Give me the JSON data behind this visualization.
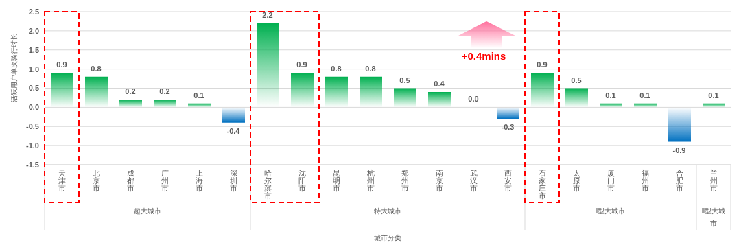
{
  "chart_data": {
    "type": "bar",
    "ylabel": "活跃用户单次骑行时长",
    "xlabel": "城市分类",
    "categories": [
      "天津市",
      "北京市",
      "成都市",
      "广州市",
      "上海市",
      "深圳市",
      "哈尔滨市",
      "沈阳市",
      "昆明市",
      "杭州市",
      "郑州市",
      "南京市",
      "武汉市",
      "西安市",
      "石家庄市",
      "太原市",
      "厦门市",
      "福州市",
      "合肥市",
      "兰州市"
    ],
    "values": [
      0.9,
      0.8,
      0.2,
      0.2,
      0.1,
      -0.4,
      2.2,
      0.9,
      0.8,
      0.8,
      0.5,
      0.4,
      0.0,
      -0.3,
      0.9,
      0.5,
      0.1,
      0.1,
      -0.9,
      0.1
    ],
    "value_labels": [
      "0.9",
      "0.8",
      "0.2",
      "0.2",
      "0.1",
      "-0.4",
      "2.2",
      "0.9",
      "0.8",
      "0.8",
      "0.5",
      "0.4",
      "0.0",
      "-0.3",
      "0.9",
      "0.5",
      "0.1",
      "0.1",
      "-0.9",
      "0.1"
    ],
    "colors": [
      "#00b050",
      "#00b050",
      "#00b050",
      "#00b050",
      "#00b050",
      "#0070c0",
      "#00b050",
      "#00b050",
      "#00b050",
      "#00b050",
      "#00b050",
      "#00b050",
      "#00b050",
      "#0070c0",
      "#00b050",
      "#00b050",
      "#00b050",
      "#00b050",
      "#0070c0",
      "#00b050"
    ],
    "ylim": [
      -1.5,
      2.5
    ],
    "yticks": [
      {
        "value": -1.5,
        "label": "-1.5"
      },
      {
        "value": -1,
        "label": "-1.0"
      },
      {
        "value": -0.5,
        "label": "-0.5"
      },
      {
        "value": 0,
        "label": "0.0"
      },
      {
        "value": 0.5,
        "label": "0.5"
      },
      {
        "value": 1,
        "label": "1.0"
      },
      {
        "value": 1.5,
        "label": "1.5"
      },
      {
        "value": 2,
        "label": "2.0"
      },
      {
        "value": 2.5,
        "label": "2.5"
      }
    ],
    "grid": "y",
    "annotations": [
      "超大城市",
      "特大城市",
      "Ⅰ型大城市",
      "Ⅱ型大城市",
      "+0.4mins"
    ]
  }
}
